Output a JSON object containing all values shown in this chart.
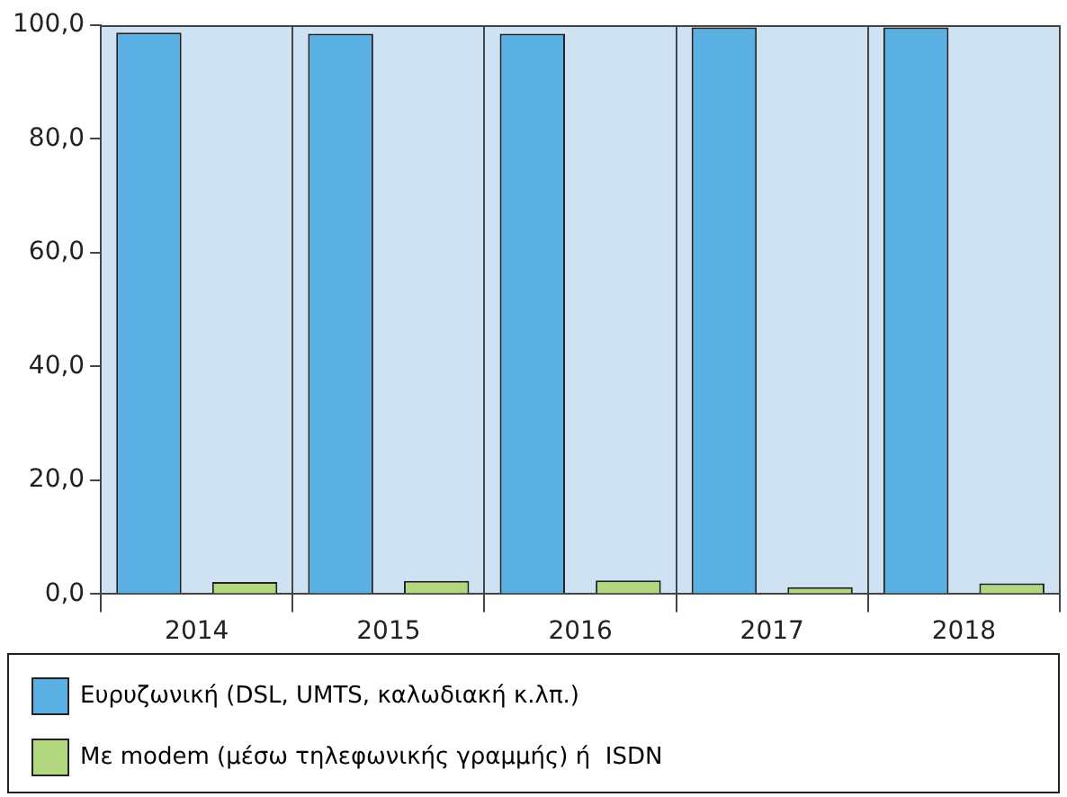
{
  "chart_data": {
    "type": "bar",
    "categories": [
      "2014",
      "2015",
      "2016",
      "2017",
      "2018"
    ],
    "series": [
      {
        "name": "Ευρυζωνική (DSL, UMTS, καλωδιακή κ.λπ.)",
        "color": "#5aafe3",
        "values": [
          98.7,
          98.5,
          98.5,
          99.6,
          99.6
        ]
      },
      {
        "name": "Με modem (μέσω τηλεφωνικής γραμμής) ή  ISDN",
        "color": "#b3d77e",
        "values": [
          2.1,
          2.3,
          2.4,
          1.2,
          1.9
        ]
      }
    ],
    "ylim": [
      0,
      100
    ],
    "yticks": [
      {
        "value": 0,
        "label": "0,0"
      },
      {
        "value": 20,
        "label": "20,0"
      },
      {
        "value": 40,
        "label": "40,0"
      },
      {
        "value": 60,
        "label": "60,0"
      },
      {
        "value": 80,
        "label": "80,0"
      },
      {
        "value": 100,
        "label": "100,0"
      }
    ],
    "grid": "x",
    "legend": "bottom"
  }
}
